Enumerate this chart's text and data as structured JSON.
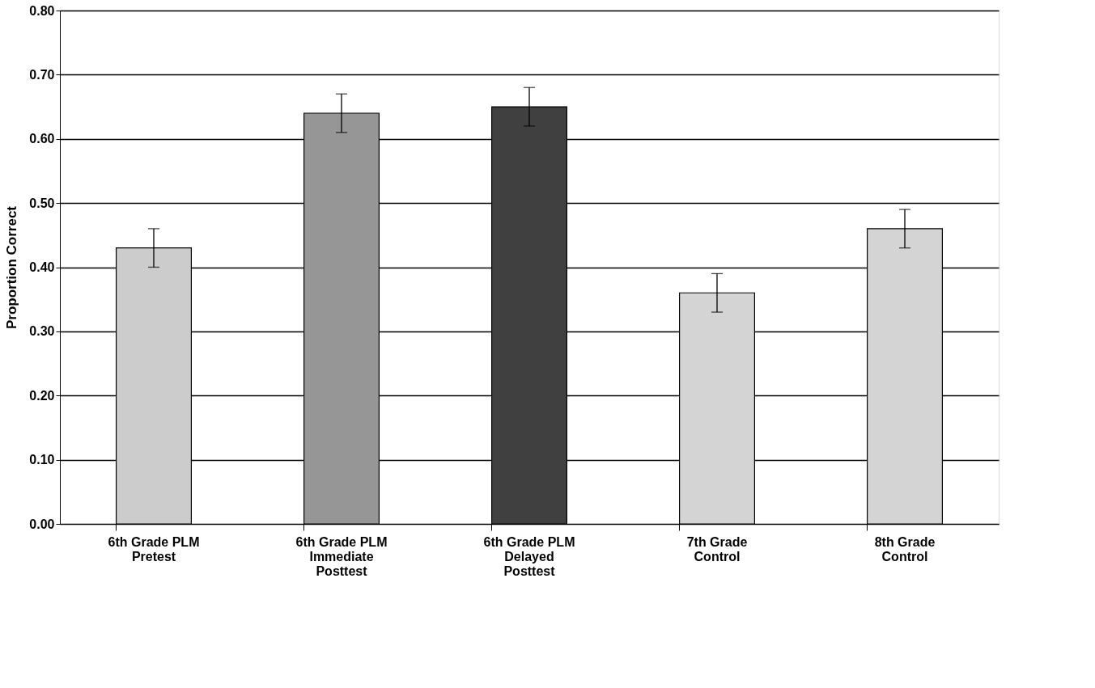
{
  "chart_data": {
    "type": "bar",
    "ylabel": "Proportion Correct",
    "categories": [
      "6th Grade PLM Pretest",
      "6th Grade PLM Immediate Posttest",
      "6th Grade PLM Delayed Posttest",
      "7th Grade Control",
      "8th Grade Control"
    ],
    "values": [
      0.43,
      0.64,
      0.65,
      0.36,
      0.46
    ],
    "colors": [
      "#cccccc",
      "#969696",
      "#404040",
      "#d4d4d4",
      "#d4d4d4"
    ],
    "errors": [
      0.03,
      0.03,
      0.03,
      0.03,
      0.03
    ],
    "ylim": [
      0,
      0.8
    ],
    "yticks": [
      {
        "value": 0,
        "label": "0.00"
      },
      {
        "value": 0.1,
        "label": "0.10"
      },
      {
        "value": 0.2,
        "label": "0.20"
      },
      {
        "value": 0.3,
        "label": "0.30"
      },
      {
        "value": 0.4,
        "label": "0.40"
      },
      {
        "value": 0.5,
        "label": "0.50"
      },
      {
        "value": 0.6,
        "label": "0.60"
      },
      {
        "value": 0.7,
        "label": "0.70"
      },
      {
        "value": 0.8,
        "label": "0.80"
      }
    ],
    "grid": "y",
    "legend": false
  }
}
